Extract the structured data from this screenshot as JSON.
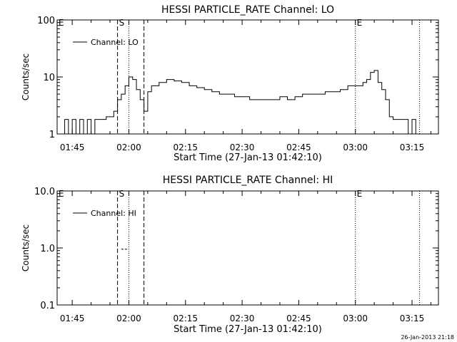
{
  "chart_data": [
    {
      "type": "line",
      "title": "HESSI PARTICLE_RATE Channel: LO",
      "xlabel": "Start Time (27-Jan-13 01:42:10)",
      "ylabel": "Counts/sec",
      "y_scale": "log",
      "ylim": [
        1,
        100
      ],
      "y_ticks": [
        1,
        10,
        100
      ],
      "y_tick_labels": [
        "1",
        "10",
        "100"
      ],
      "xlim": [
        "01:41",
        "03:22"
      ],
      "x_ticks": [
        "01:45",
        "02:00",
        "02:15",
        "02:30",
        "02:45",
        "03:00",
        "03:15"
      ],
      "legend": {
        "position": "top-left",
        "entries": [
          "Channel: LO"
        ]
      },
      "markers": [
        {
          "label": "E",
          "time": "01:41",
          "style": "dotted"
        },
        {
          "label": "S",
          "time": "01:57",
          "style": "dashed"
        },
        {
          "label": "",
          "time": "02:00",
          "style": "dotted"
        },
        {
          "label": "",
          "time": "02:04",
          "style": "dashed"
        },
        {
          "label": "E",
          "time": "03:00",
          "style": "dotted"
        },
        {
          "label": "",
          "time": "03:17",
          "style": "dotted"
        }
      ],
      "series": [
        {
          "name": "Channel: LO",
          "x": [
            "01:42",
            "01:43",
            "01:44",
            "01:45",
            "01:46",
            "01:47",
            "01:48",
            "01:49",
            "01:50",
            "01:51",
            "01:52",
            "01:53",
            "01:54",
            "01:55",
            "01:56",
            "01:57",
            "01:58",
            "01:59",
            "02:00",
            "02:01",
            "02:02",
            "02:03",
            "02:04",
            "02:05",
            "02:06",
            "02:08",
            "02:10",
            "02:12",
            "02:14",
            "02:16",
            "02:18",
            "02:20",
            "02:22",
            "02:24",
            "02:26",
            "02:28",
            "02:30",
            "02:32",
            "02:34",
            "02:36",
            "02:38",
            "02:40",
            "02:42",
            "02:44",
            "02:46",
            "02:48",
            "02:50",
            "02:52",
            "02:54",
            "02:56",
            "02:58",
            "03:00",
            "03:02",
            "03:03",
            "03:04",
            "03:05",
            "03:06",
            "03:07",
            "03:08",
            "03:09",
            "03:10",
            "03:12",
            "03:14",
            "03:15",
            "03:16",
            "03:17"
          ],
          "values": [
            1.0,
            1.8,
            1.0,
            1.8,
            1.0,
            1.8,
            1.0,
            1.8,
            1.0,
            1.8,
            1.8,
            1.8,
            2.0,
            2.0,
            2.5,
            4.0,
            5.0,
            7.0,
            10.0,
            9.0,
            6.0,
            4.0,
            2.5,
            5.5,
            7.0,
            8.0,
            9.0,
            8.5,
            8.0,
            7.0,
            6.5,
            6.0,
            5.5,
            5.0,
            5.0,
            4.5,
            4.5,
            4.0,
            4.0,
            4.0,
            4.0,
            4.5,
            4.0,
            4.5,
            5.0,
            5.0,
            5.0,
            5.5,
            5.5,
            6.0,
            7.0,
            7.0,
            8.0,
            9.0,
            12.0,
            13.0,
            8.0,
            6.0,
            4.0,
            2.0,
            1.8,
            1.8,
            1.0,
            1.8,
            1.0,
            1.0
          ]
        }
      ]
    },
    {
      "type": "line",
      "title": "HESSI PARTICLE_RATE Channel: HI",
      "xlabel": "Start Time (27-Jan-13 01:42:10)",
      "ylabel": "Counts/sec",
      "y_scale": "log",
      "ylim": [
        0.1,
        10
      ],
      "y_ticks": [
        0.1,
        1,
        10
      ],
      "y_tick_labels": [
        "0.1",
        "1.0",
        "10.0"
      ],
      "xlim": [
        "01:41",
        "03:22"
      ],
      "x_ticks": [
        "01:45",
        "02:00",
        "02:15",
        "02:30",
        "02:45",
        "03:00",
        "03:15"
      ],
      "legend": {
        "position": "top-left",
        "entries": [
          "Channel: HI"
        ]
      },
      "markers": [
        {
          "label": "E",
          "time": "01:41",
          "style": "dotted"
        },
        {
          "label": "S",
          "time": "01:57",
          "style": "dashed"
        },
        {
          "label": "",
          "time": "02:00",
          "style": "dotted"
        },
        {
          "label": "",
          "time": "02:04",
          "style": "dashed"
        },
        {
          "label": "E",
          "time": "03:00",
          "style": "dotted"
        },
        {
          "label": "",
          "time": "03:17",
          "style": "dotted"
        }
      ],
      "series": [
        {
          "name": "Channel: HI",
          "x": [
            "01:58",
            "01:59"
          ],
          "values": [
            0.95,
            0.95
          ]
        }
      ]
    }
  ],
  "footer": {
    "timestamp": "26-Jan-2013 21:18"
  }
}
